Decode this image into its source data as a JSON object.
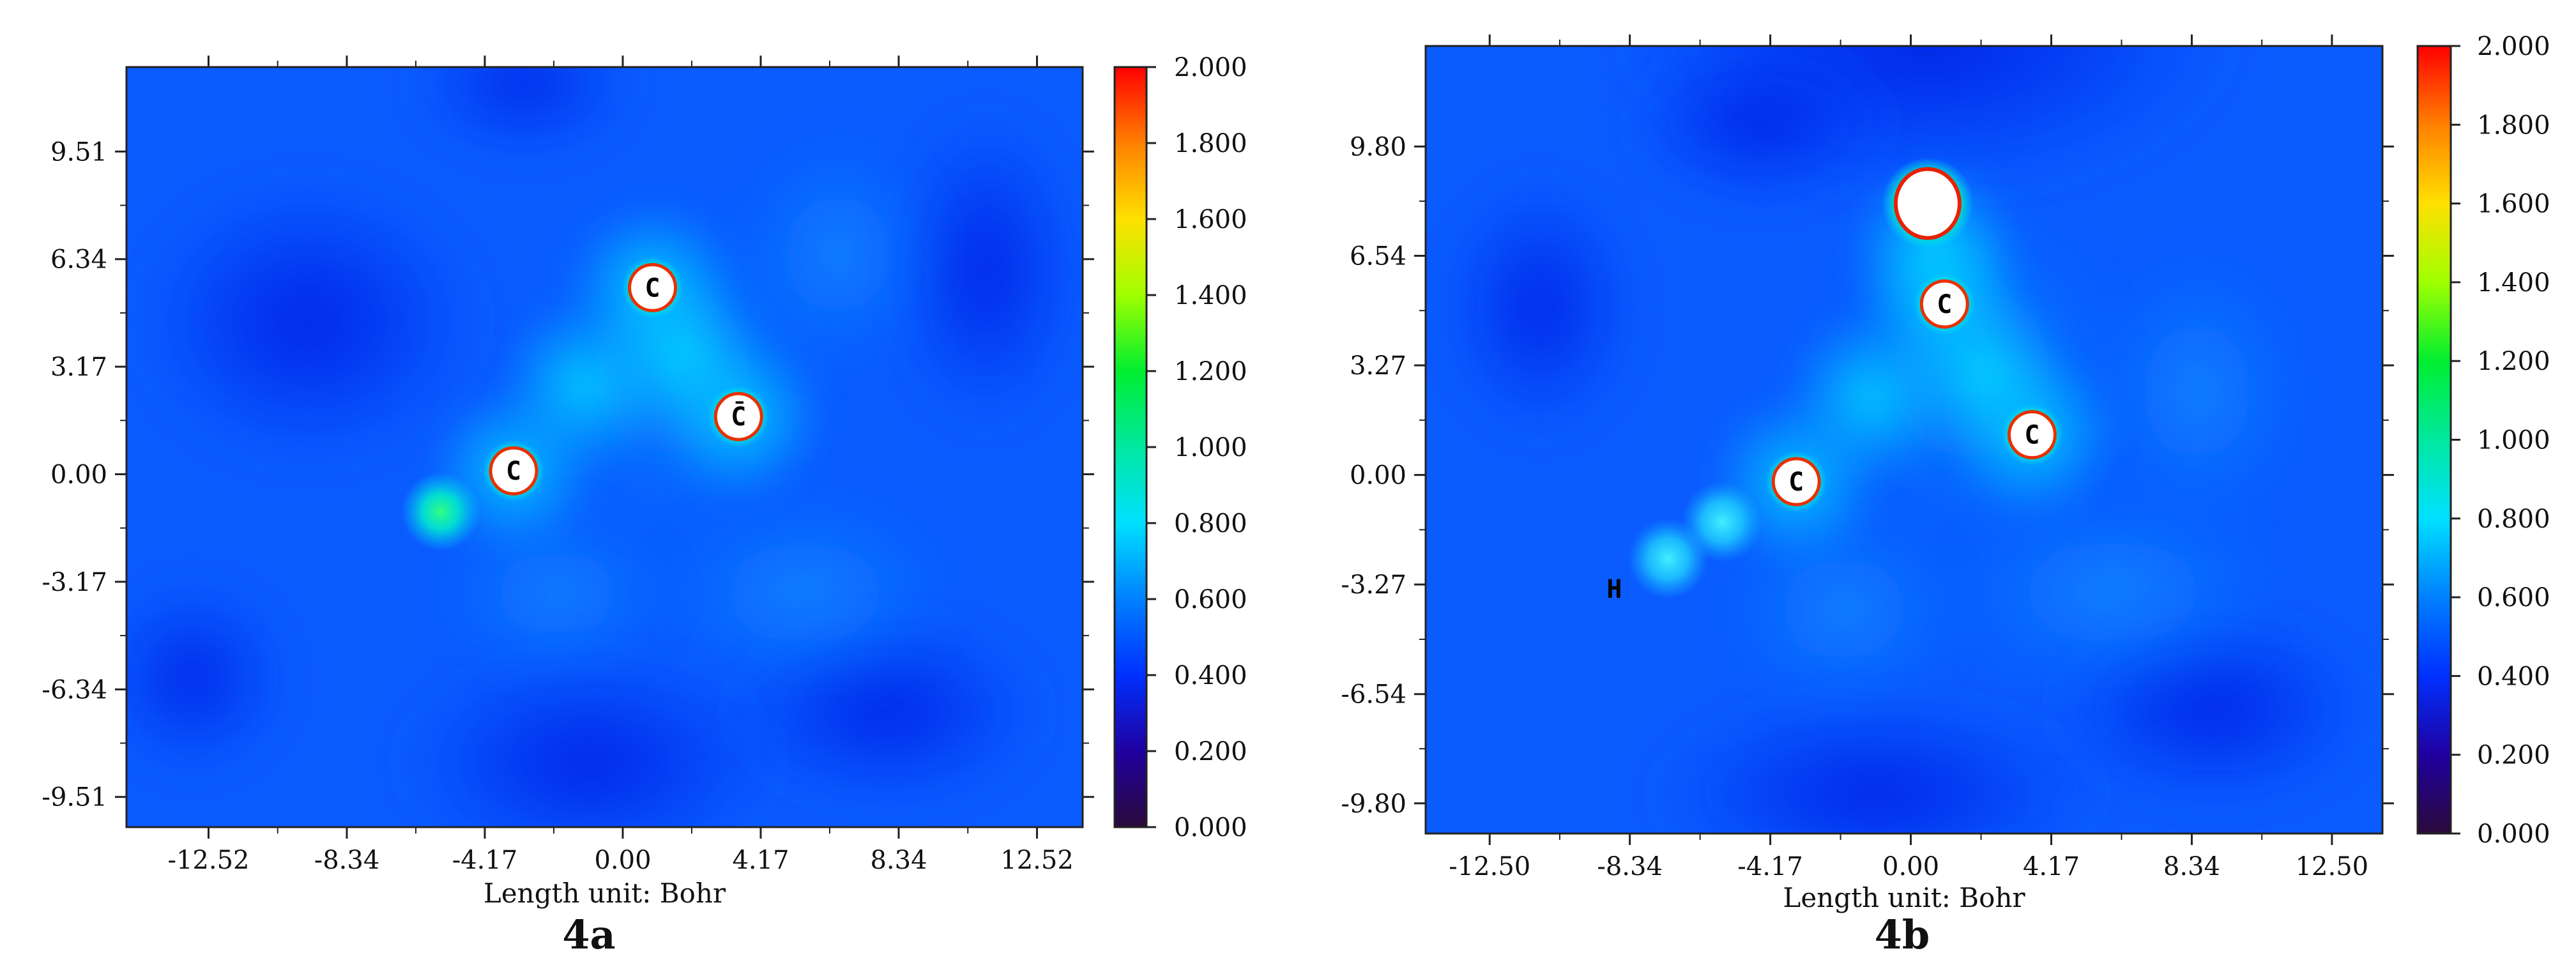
{
  "chart_data": [
    {
      "type": "heatmap",
      "panel": "4a",
      "caption": "4a",
      "xlabel": "Length unit: Bohr",
      "ylabel": "",
      "x_ticks": [
        "-12.52",
        "-8.34",
        "-4.17",
        "0.00",
        "4.17",
        "8.34",
        "12.52"
      ],
      "y_ticks": [
        "9.51",
        "6.34",
        "3.17",
        "0.00",
        "-3.17",
        "-6.34",
        "-9.51"
      ],
      "x_tick_values": [
        -12.52,
        -8.34,
        -4.17,
        0.0,
        4.17,
        8.34,
        12.52
      ],
      "y_tick_values": [
        9.51,
        6.34,
        3.17,
        0.0,
        -3.17,
        -6.34,
        -9.51
      ],
      "xlim": [
        -15.0,
        13.9
      ],
      "ylim": [
        -10.4,
        12.0
      ],
      "colorbar": {
        "ticks": [
          "2.000",
          "1.800",
          "1.600",
          "1.400",
          "1.200",
          "1.000",
          "0.800",
          "0.600",
          "0.400",
          "0.200",
          "0.000"
        ],
        "range": [
          0.0,
          2.0
        ]
      },
      "atoms": [
        {
          "label": "C",
          "x": 0.9,
          "y": 5.5
        },
        {
          "label": "C̄",
          "x": 3.5,
          "y": 1.7
        },
        {
          "label": "C",
          "x": -3.3,
          "y": 0.1
        }
      ],
      "hydrogen_spots": [
        {
          "x": -5.5,
          "y": -1.1
        }
      ]
    },
    {
      "type": "heatmap",
      "panel": "4b",
      "caption": "4b",
      "xlabel": "Length unit: Bohr",
      "ylabel": "",
      "x_ticks": [
        "-12.50",
        "-8.34",
        "-4.17",
        "0.00",
        "4.17",
        "8.34",
        "12.50"
      ],
      "y_ticks": [
        "9.80",
        "6.54",
        "3.27",
        "0.00",
        "-3.27",
        "-6.54",
        "-9.80"
      ],
      "x_tick_values": [
        -12.5,
        -8.34,
        -4.17,
        0.0,
        4.17,
        8.34,
        12.5
      ],
      "y_tick_values": [
        9.8,
        6.54,
        3.27,
        0.0,
        -3.27,
        -6.54,
        -9.8
      ],
      "xlim": [
        -14.4,
        14.0
      ],
      "ylim": [
        -10.7,
        12.8
      ],
      "colorbar": {
        "ticks": [
          "2.000",
          "1.800",
          "1.600",
          "1.400",
          "1.200",
          "1.000",
          "0.800",
          "0.600",
          "0.400",
          "0.200",
          "0.000"
        ],
        "range": [
          0.0,
          2.0
        ]
      },
      "atoms": [
        {
          "label": "C",
          "x": 1.0,
          "y": 5.1
        },
        {
          "label": "C",
          "x": 3.6,
          "y": 1.2
        },
        {
          "label": "C",
          "x": -3.4,
          "y": -0.2
        }
      ],
      "large_atom": {
        "x": 0.5,
        "y": 8.1
      },
      "h_label": {
        "label": "H",
        "x": -8.8,
        "y": -3.4
      },
      "hydrogen_spots": [
        {
          "x": -5.6,
          "y": -1.4
        },
        {
          "x": -7.2,
          "y": -2.5
        }
      ]
    }
  ]
}
